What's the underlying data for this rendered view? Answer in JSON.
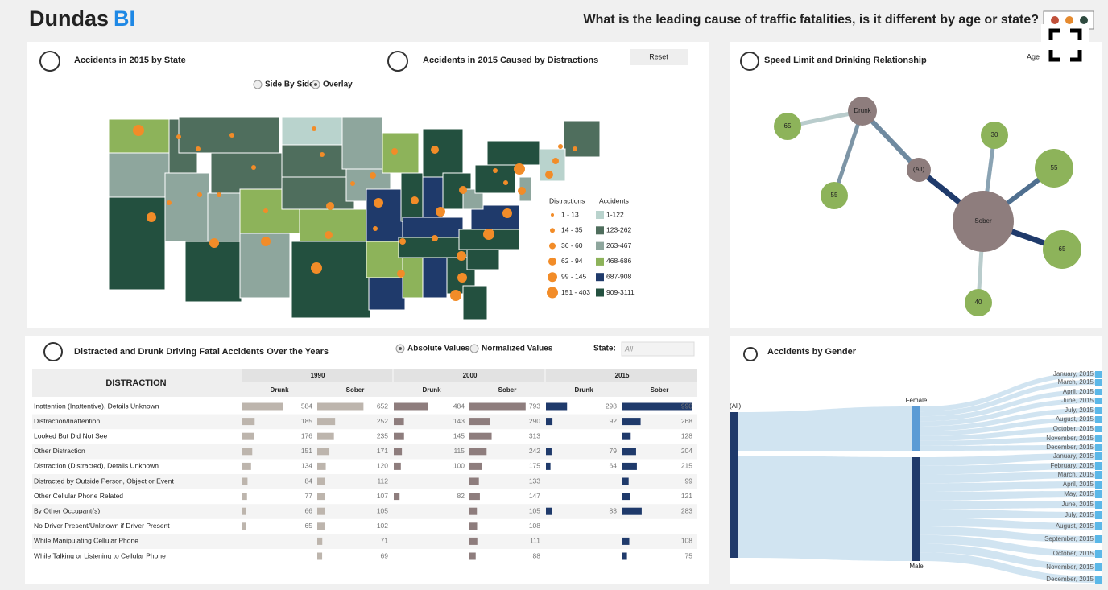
{
  "header": {
    "logo_name": "Dundas",
    "logo_mark": "BI",
    "title": "What is the leading cause of traffic fatalities, is it different by age or state?"
  },
  "map_panel": {
    "title_left": "Accidents in 2015 by State",
    "title_right": "Accidents in 2015 Caused by Distractions",
    "reset": "Reset",
    "modes": [
      "Side By Side",
      "Overlay"
    ],
    "legend": {
      "distractions_title": "Distractions",
      "accidents_title": "Accidents",
      "distractions": [
        "1 - 13",
        "14 - 35",
        "36 - 60",
        "62 - 94",
        "99 - 145",
        "151 - 403"
      ],
      "accidents": [
        {
          "label": "1-122",
          "color": "#b9d3cd"
        },
        {
          "label": "123-262",
          "color": "#4f6e5d"
        },
        {
          "label": "263-467",
          "color": "#8ea69d"
        },
        {
          "label": "468-686",
          "color": "#8db35a"
        },
        {
          "label": "687-908",
          "color": "#1f3a6b"
        },
        {
          "label": "909-3111",
          "color": "#23503f"
        }
      ],
      "bubble_color": "#f28c28"
    }
  },
  "network": {
    "title": "Speed Limit and Drinking Relationship",
    "age_label": "Age",
    "nodes": [
      {
        "label": "Drunk",
        "color": "#8e7d7d"
      },
      {
        "label": "65",
        "color": "#8db35a"
      },
      {
        "label": "(All)",
        "color": "#8e7d7d"
      },
      {
        "label": "55",
        "color": "#8db35a"
      },
      {
        "label": "30",
        "color": "#8db35a"
      },
      {
        "label": "55",
        "color": "#8db35a"
      },
      {
        "label": "Sober",
        "color": "#8e7d7d"
      },
      {
        "label": "65",
        "color": "#8db35a"
      },
      {
        "label": "40",
        "color": "#8db35a"
      }
    ]
  },
  "table": {
    "title": "Distracted and Drunk Driving Fatal Accidents Over the Years",
    "modes": [
      "Absolute Values",
      "Normalized Values"
    ],
    "state_label": "State:",
    "state_value": "All",
    "header": "DISTRACTION",
    "years": [
      "1990",
      "2000",
      "2015"
    ],
    "subheaders": [
      "Drunk",
      "Sober"
    ],
    "colors": [
      "#bdb5ad",
      "#8e7d7d",
      "#1f3a6b"
    ],
    "rows": [
      {
        "label": "Inattention (Inattentive), Details Unknown",
        "values": [
          584,
          652,
          484,
          793,
          298,
          990
        ]
      },
      {
        "label": "Distraction/Inattention",
        "values": [
          185,
          252,
          143,
          290,
          92,
          268
        ]
      },
      {
        "label": "Looked But Did Not See",
        "values": [
          176,
          235,
          145,
          313,
          null,
          128
        ]
      },
      {
        "label": "Other Distraction",
        "values": [
          151,
          171,
          115,
          242,
          79,
          204
        ]
      },
      {
        "label": "Distraction (Distracted), Details Unknown",
        "values": [
          134,
          120,
          100,
          175,
          64,
          215
        ]
      },
      {
        "label": "Distracted by Outside Person, Object or Event",
        "values": [
          84,
          112,
          null,
          133,
          null,
          99
        ]
      },
      {
        "label": "Other Cellular Phone Related",
        "values": [
          77,
          107,
          82,
          147,
          null,
          121
        ]
      },
      {
        "label": "By Other Occupant(s)",
        "values": [
          66,
          105,
          null,
          105,
          83,
          283
        ]
      },
      {
        "label": "No Driver Present/Unknown if Driver Present",
        "values": [
          65,
          102,
          null,
          108,
          null,
          null
        ]
      },
      {
        "label": "While Manipulating Cellular Phone",
        "values": [
          null,
          71,
          null,
          111,
          null,
          108
        ]
      },
      {
        "label": "While Talking or Listening to Cellular Phone",
        "values": [
          null,
          69,
          null,
          88,
          null,
          75
        ]
      }
    ]
  },
  "gender": {
    "title": "Accidents by Gender",
    "all": "(All)",
    "female": "Female",
    "male": "Male",
    "female_months": [
      "January, 2015",
      "March, 2015",
      "April, 2015",
      "June, 2015",
      "July, 2015",
      "August, 2015",
      "October, 2015",
      "November, 2015",
      "December, 2015"
    ],
    "male_months": [
      "January, 2015",
      "February, 2015",
      "March, 2015",
      "April, 2015",
      "May, 2015",
      "June, 2015",
      "July, 2015",
      "August, 2015",
      "September, 2015",
      "October, 2015",
      "November, 2015",
      "December, 2015"
    ]
  }
}
